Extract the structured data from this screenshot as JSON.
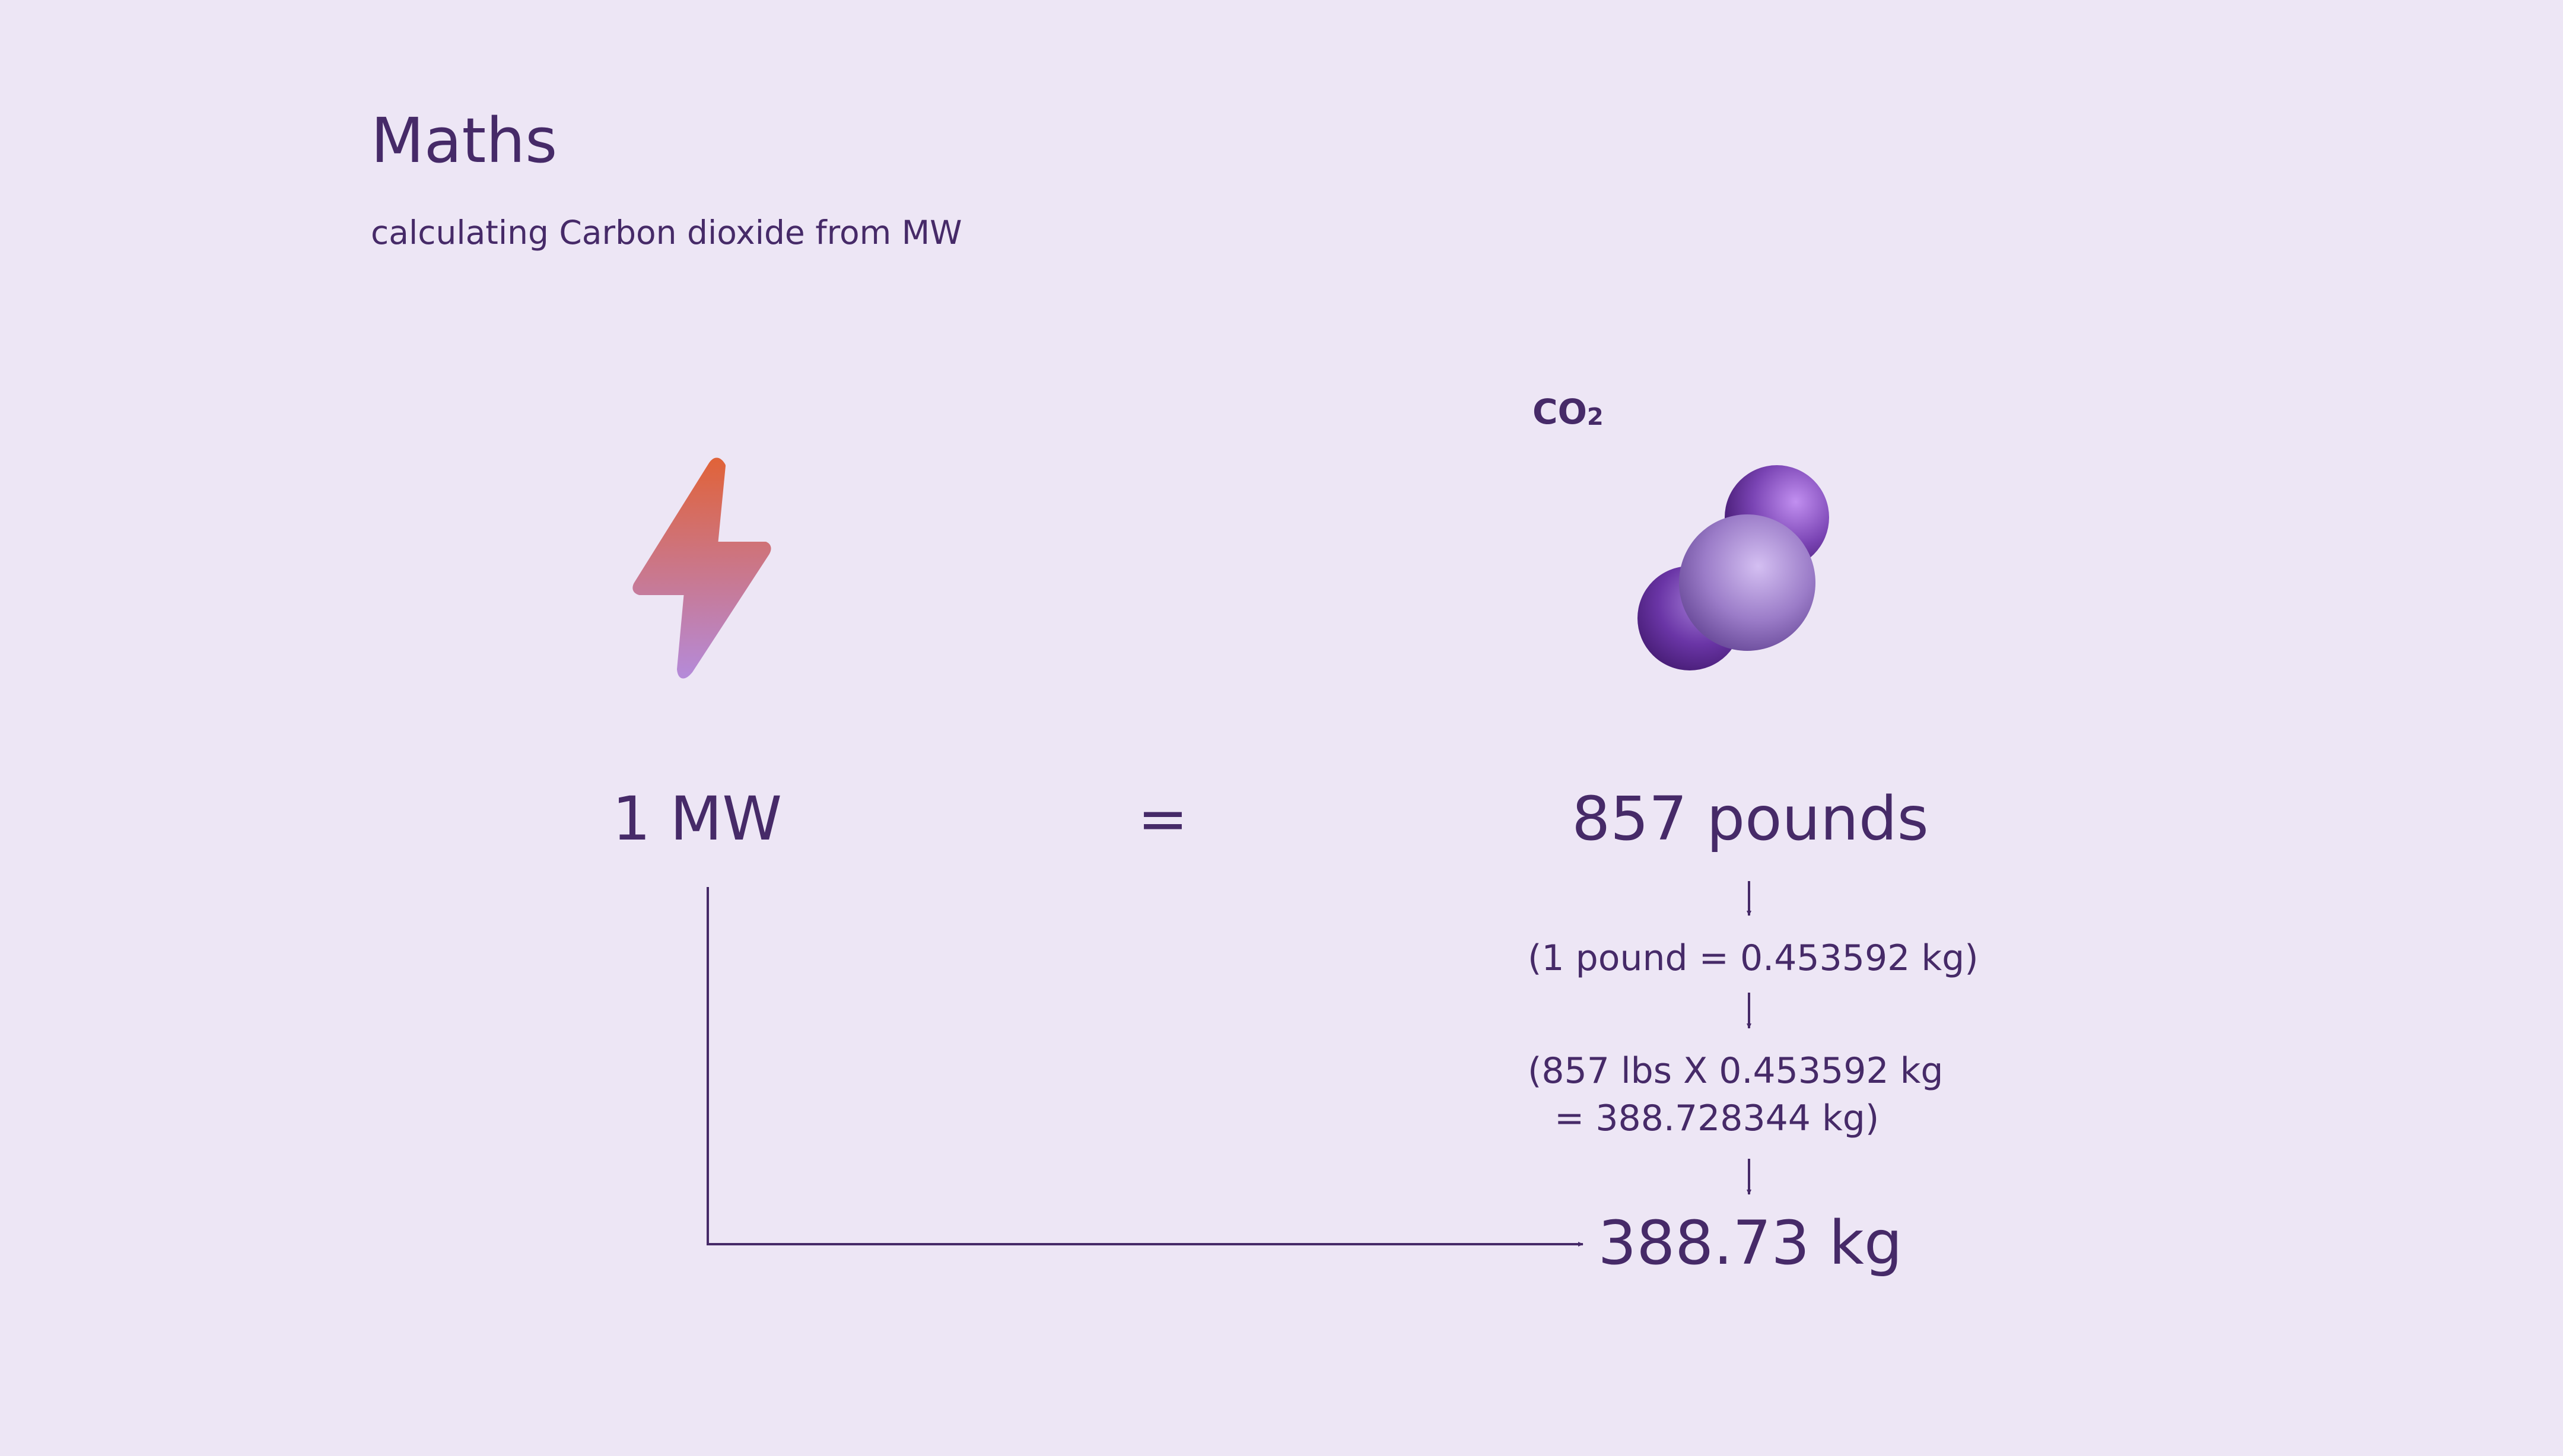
{
  "header": {
    "title": "Maths",
    "subtitle": "calculating Carbon dioxide from MW"
  },
  "molecule": {
    "label_main": "CO",
    "label_sub": "2"
  },
  "equation": {
    "lhs": "1 MW",
    "equals": "=",
    "rhs": "857 pounds"
  },
  "steps": {
    "conversion": "(1 pound = 0.453592 kg)",
    "calc_line1": "(857 lbs X  0.453592 kg",
    "calc_line2": "= 388.728344 kg)",
    "result": "388.73 kg"
  },
  "colors": {
    "background": "#ede6f5",
    "text": "#462a68",
    "bolt_top": "#e0633a",
    "bolt_bottom": "#b58ad8",
    "atom_dark": "#4a1c78",
    "atom_light": "#c9aef0"
  },
  "icons": [
    "lightning-bolt-icon",
    "co2-molecule-icon"
  ]
}
